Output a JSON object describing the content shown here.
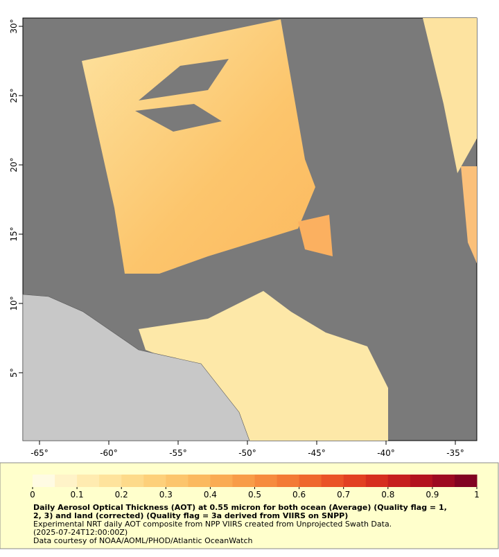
{
  "map": {
    "xlim": [
      -66.2,
      -33.45
    ],
    "ylim": [
      0.1,
      30.6
    ],
    "xticks": [
      {
        "value": -65,
        "label": "-65°"
      },
      {
        "value": -60,
        "label": "-60°"
      },
      {
        "value": -55,
        "label": "-55°"
      },
      {
        "value": -50,
        "label": "-50°"
      },
      {
        "value": -45,
        "label": "-45°"
      },
      {
        "value": -40,
        "label": "-40°"
      },
      {
        "value": -35,
        "label": "-35°"
      }
    ],
    "yticks": [
      {
        "value": 5,
        "label": "5°"
      },
      {
        "value": 10,
        "label": "10°"
      },
      {
        "value": 15,
        "label": "15°"
      },
      {
        "value": 20,
        "label": "20°"
      },
      {
        "value": 25,
        "label": "25°"
      },
      {
        "value": 30,
        "label": "30°"
      }
    ]
  },
  "colorbar": {
    "range": [
      0,
      1
    ],
    "ticks": [
      0,
      0.1,
      0.2,
      0.3,
      0.4,
      0.5,
      0.6,
      0.7,
      0.8,
      0.9,
      1
    ],
    "colors": [
      "#fffbe3",
      "#fff3c8",
      "#ffebb0",
      "#fee39c",
      "#fdda8a",
      "#fdd07a",
      "#fcc56c",
      "#fbb95f",
      "#faab53",
      "#f89c48",
      "#f68b3e",
      "#f37a35",
      "#ef672d",
      "#ea5327",
      "#e24022",
      "#d62e1f",
      "#c61e1f",
      "#b3121f",
      "#9d0a21",
      "#820322"
    ]
  },
  "caption": {
    "title": [
      "Daily Aerosol Optical Thickness (AOT) at 0.55 micron for both ocean (Average) (Quality flag = 1,",
      "2, 3) and land (corrected) (Quality flag = 3a derived from VIIRS on SNPP)"
    ],
    "lines": [
      "Experimental NRT daily AOT composite from NPP VIIRS created from Unprojected Swath Data.",
      "(2025-07-24T12:00:00Z)",
      "Data courtesy of NOAA/AOML/PHOD/Atlantic OceanWatch"
    ]
  }
}
